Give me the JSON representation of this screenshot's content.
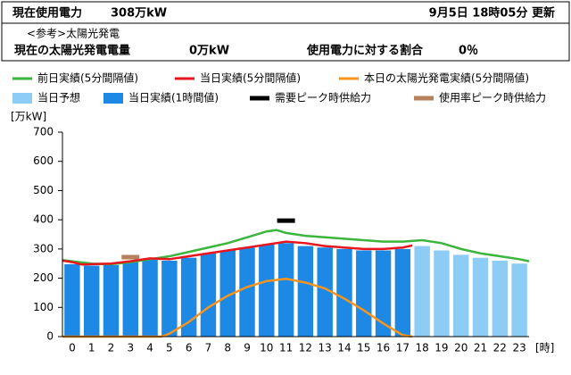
{
  "header": {
    "current_label": "現在使用電力",
    "current_value": "308万kW",
    "updated": "9月5日 18時05分 更新",
    "reference": "<参考>太陽光発電",
    "solar_label": "現在の太陽光発電電量",
    "solar_value": "0万kW",
    "ratio_label": "使用電力に対する割合",
    "ratio_value": "0％"
  },
  "chart_data": {
    "type": "bar",
    "ylabel": "[万kW]",
    "xlabel": "[時]",
    "categories": [
      "0",
      "1",
      "2",
      "3",
      "4",
      "5",
      "6",
      "7",
      "8",
      "9",
      "10",
      "11",
      "12",
      "13",
      "14",
      "15",
      "16",
      "17",
      "18",
      "19",
      "20",
      "21",
      "22",
      "23"
    ],
    "ylim": [
      0,
      700
    ],
    "yticks": [
      0,
      100,
      200,
      300,
      400,
      500,
      600,
      700
    ],
    "grid": false,
    "series": [
      {
        "name": "前日実績(5分間隔値)",
        "kind": "line",
        "color": "#3cb53c",
        "x": [
          -0.5,
          0,
          1,
          2,
          3,
          4,
          5,
          6,
          7,
          8,
          9,
          10,
          10.5,
          11,
          12,
          13,
          14,
          15,
          16,
          17,
          18,
          19,
          20,
          21,
          22,
          23,
          23.5
        ],
        "values": [
          262,
          258,
          250,
          248,
          255,
          265,
          275,
          290,
          305,
          320,
          340,
          360,
          365,
          355,
          345,
          340,
          335,
          330,
          325,
          325,
          330,
          320,
          300,
          285,
          275,
          265,
          258
        ]
      },
      {
        "name": "当日実績(5分間隔値)",
        "kind": "line",
        "color": "#e8141e",
        "x": [
          -0.5,
          0,
          0.5,
          1,
          2,
          3,
          4,
          5,
          6,
          7,
          8,
          9,
          10,
          11,
          12,
          13,
          14,
          15,
          16,
          17,
          17.5
        ],
        "values": [
          260,
          255,
          247,
          248,
          250,
          258,
          268,
          265,
          275,
          285,
          295,
          305,
          315,
          325,
          320,
          310,
          305,
          300,
          300,
          305,
          312
        ]
      },
      {
        "name": "本日の太陽光発電実績(5分間隔値)",
        "kind": "line",
        "color": "#f7941d",
        "x": [
          -0.5,
          0,
          1,
          2,
          3,
          4,
          4.6,
          5,
          6,
          7,
          8,
          9,
          10,
          11,
          12,
          13,
          14,
          15,
          16,
          17,
          17.5
        ],
        "values": [
          0,
          0,
          0,
          0,
          0,
          0,
          0,
          10,
          50,
          100,
          140,
          170,
          190,
          198,
          185,
          165,
          130,
          90,
          45,
          5,
          0
        ]
      },
      {
        "name": "当日予想",
        "kind": "bar",
        "color": "#8dcdf5",
        "values": [
          null,
          null,
          null,
          null,
          null,
          null,
          null,
          null,
          null,
          null,
          null,
          null,
          null,
          null,
          null,
          null,
          null,
          null,
          310,
          295,
          280,
          270,
          260,
          250
        ]
      },
      {
        "name": "当日実績(1時間値)",
        "kind": "bar",
        "color": "#1e88e5",
        "values": [
          248,
          243,
          245,
          255,
          263,
          260,
          270,
          285,
          295,
          305,
          315,
          320,
          310,
          305,
          300,
          295,
          295,
          300,
          null,
          null,
          null,
          null,
          null,
          null
        ]
      },
      {
        "name": "需要ピーク時供給力",
        "kind": "marker",
        "color": "#000000",
        "x": [
          11
        ],
        "values": [
          397
        ]
      },
      {
        "name": "使用率ピーク時供給力",
        "kind": "marker",
        "color": "#b5805a",
        "x": [
          3
        ],
        "values": [
          272
        ]
      }
    ]
  }
}
